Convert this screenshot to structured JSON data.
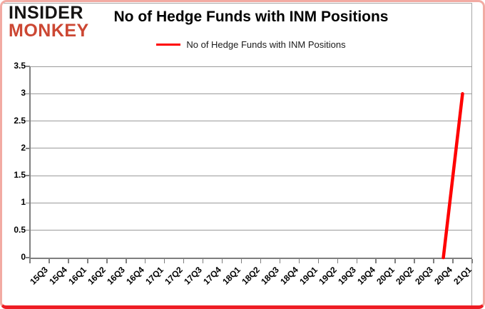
{
  "brand": {
    "line1": "INSIDER",
    "line2": "MONKEY",
    "logo_red": "#cc4733",
    "logo_black": "#151312"
  },
  "card": {
    "border_bottom_red": "#ee1c24",
    "border_side_pink": "#f2aba3"
  },
  "chart_data": {
    "type": "line",
    "title": "No of Hedge Funds with INM Positions",
    "legend_position": "top",
    "grid": true,
    "xlabel": "",
    "ylabel": "",
    "ylim": [
      0,
      3.5
    ],
    "yticks": [
      0,
      0.5,
      1,
      1.5,
      2,
      2.5,
      3,
      3.5
    ],
    "ytick_labels": [
      "0",
      "0.5",
      "1",
      "1.5",
      "2",
      "2.5",
      "3",
      "3.5"
    ],
    "categories": [
      "15Q3",
      "15Q4",
      "16Q1",
      "16Q2",
      "16Q3",
      "16Q4",
      "17Q1",
      "17Q2",
      "17Q3",
      "17Q4",
      "18Q1",
      "18Q2",
      "18Q3",
      "18Q4",
      "19Q1",
      "19Q2",
      "19Q3",
      "19Q4",
      "20Q1",
      "20Q2",
      "20Q3",
      "20Q4",
      "21Q1"
    ],
    "series": [
      {
        "name": "No of Hedge Funds with INM Positions",
        "color": "#ff0000",
        "values": [
          null,
          null,
          null,
          null,
          null,
          null,
          null,
          null,
          null,
          null,
          null,
          null,
          null,
          null,
          null,
          null,
          null,
          null,
          null,
          null,
          null,
          0,
          3
        ]
      }
    ]
  }
}
